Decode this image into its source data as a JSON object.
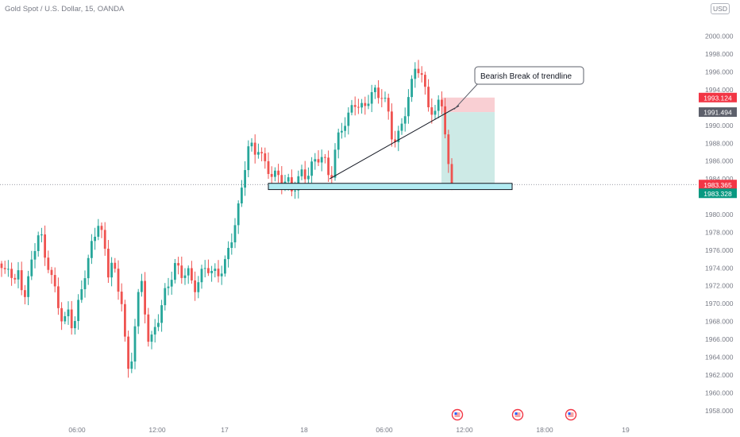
{
  "header": {
    "symbol_title": "Gold Spot / U.S. Dollar, 15, OANDA",
    "currency": "USD"
  },
  "annotation": {
    "text": "Bearish Break of trendline"
  },
  "colors": {
    "up": "#26a69a",
    "down": "#ef5350",
    "zone": "#b2ebf2",
    "stop": "#f8c7cb",
    "target": "#cdeae6",
    "axis_text": "#787b86"
  },
  "chart_data": {
    "type": "candlestick",
    "symbol": "XAU/USD",
    "interval": "15",
    "ylim": [
      1957,
      2003
    ],
    "y_ticks": [
      1958,
      1960,
      1962,
      1964,
      1966,
      1968,
      1970,
      1972,
      1974,
      1976,
      1978,
      1980,
      1984,
      1986,
      1988,
      1990,
      1994,
      1996,
      1998,
      2000
    ],
    "x_ticks": [
      "06:00",
      "12:00",
      "17",
      "18",
      "06:00",
      "12:00",
      "18:00",
      "19"
    ],
    "price_labels": [
      {
        "value": "1993.124",
        "role": "stop",
        "color": "#f23645"
      },
      {
        "value": "1991.494",
        "role": "entry",
        "color": "#5d606b"
      },
      {
        "value": "1983.365",
        "role": "last",
        "color": "#f23645"
      },
      {
        "value": "1983.328",
        "role": "target",
        "color": "#089981"
      }
    ],
    "last_price": 1983.365,
    "support_zone": [
      1982.8,
      1983.5
    ],
    "trendline": [
      1984.0,
      1992.2
    ],
    "position": {
      "entry": 1991.494,
      "stop": 1993.124,
      "target": 1983.328
    },
    "event_markers": 3
  }
}
